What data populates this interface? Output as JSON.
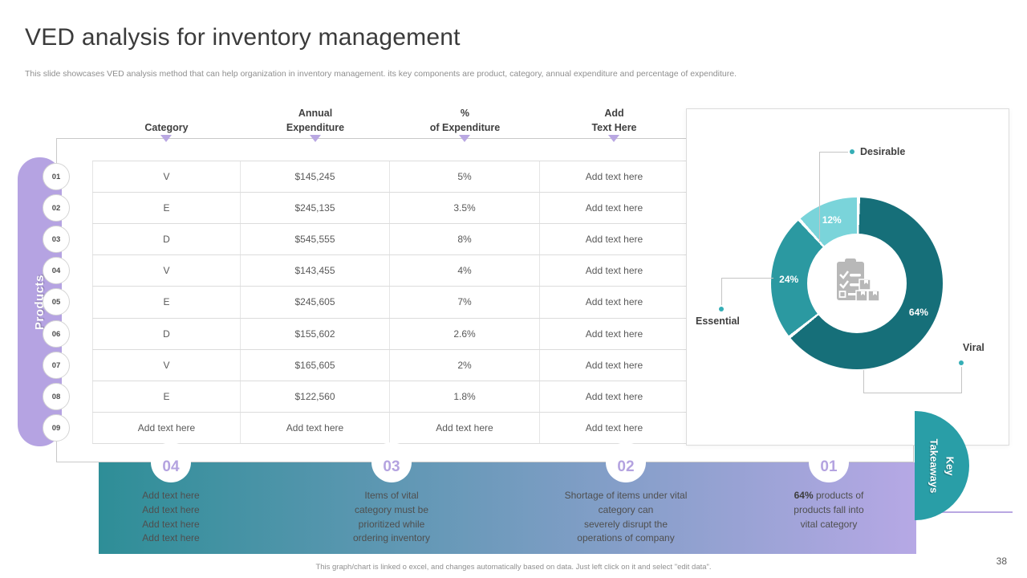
{
  "slide": {
    "title": "VED analysis for inventory management",
    "subtitle": "This slide showcases VED analysis method that can help organization in inventory management. its key components are product, category, annual expenditure and percentage of expenditure.",
    "footer_note": "This graph/chart is linked o excel, and changes automatically based on data. Just left click on it and select \"edit data\".",
    "page_number": "38"
  },
  "colors": {
    "accent_lavender": "#b5a3e2",
    "teal_dark": "#166f79",
    "teal_mid": "#2b99a1",
    "teal_light": "#7ad4da",
    "takeaways_circle": "#299ea7",
    "band_gradient_left": "#2e8e97",
    "band_gradient_right": "#b6a8e5"
  },
  "table": {
    "side_label": "Products",
    "headers": [
      "Category",
      "Annual\nExpenditure",
      "%\nof Expenditure",
      "Add\nText Here"
    ],
    "rows": [
      {
        "num": "01",
        "category": "V",
        "annual_expenditure": "$145,245",
        "pct_of_expenditure": "5%",
        "add_text": "Add text here"
      },
      {
        "num": "02",
        "category": "E",
        "annual_expenditure": "$245,135",
        "pct_of_expenditure": "3.5%",
        "add_text": "Add text here"
      },
      {
        "num": "03",
        "category": "D",
        "annual_expenditure": "$545,555",
        "pct_of_expenditure": "8%",
        "add_text": "Add text here"
      },
      {
        "num": "04",
        "category": "V",
        "annual_expenditure": "$143,455",
        "pct_of_expenditure": "4%",
        "add_text": "Add text here"
      },
      {
        "num": "05",
        "category": "E",
        "annual_expenditure": "$245,605",
        "pct_of_expenditure": "7%",
        "add_text": "Add text here"
      },
      {
        "num": "06",
        "category": "D",
        "annual_expenditure": "$155,602",
        "pct_of_expenditure": "2.6%",
        "add_text": "Add text here"
      },
      {
        "num": "07",
        "category": "V",
        "annual_expenditure": "$165,605",
        "pct_of_expenditure": "2%",
        "add_text": "Add text here"
      },
      {
        "num": "08",
        "category": "E",
        "annual_expenditure": "$122,560",
        "pct_of_expenditure": "1.8%",
        "add_text": "Add text here"
      },
      {
        "num": "09",
        "category": "Add text here",
        "annual_expenditure": "Add text here",
        "pct_of_expenditure": "Add text here",
        "add_text": "Add text here"
      }
    ]
  },
  "chart_data": {
    "type": "pie",
    "variant": "donut",
    "start_angle_deg": 0,
    "direction": "clockwise",
    "slices": [
      {
        "label": "Viral",
        "value": 64,
        "pct_label": "64%",
        "color": "#166f79"
      },
      {
        "label": "Essential",
        "value": 24,
        "pct_label": "24%",
        "color": "#2b99a1"
      },
      {
        "label": "Desirable",
        "value": 12,
        "pct_label": "12%",
        "color": "#7ad4da"
      }
    ],
    "center_icon": "inventory-clipboard-icon",
    "legend_position": "callouts-around-chart"
  },
  "takeaways": {
    "panel_label": "Key\nTakeaways",
    "items": [
      {
        "number": "04",
        "lines": [
          "Add text here",
          "Add text here",
          "Add text here",
          "Add text here"
        ]
      },
      {
        "number": "03",
        "lines": [
          "Items of vital",
          "category must be",
          "prioritized while",
          "ordering inventory"
        ]
      },
      {
        "number": "02",
        "lines": [
          "Shortage of items under vital",
          "category can",
          "severely disrupt the",
          "operations of company"
        ]
      },
      {
        "number": "01",
        "bold_lead": "64%",
        "lines": [
          "products of",
          "products fall into",
          "vital category"
        ]
      }
    ]
  }
}
